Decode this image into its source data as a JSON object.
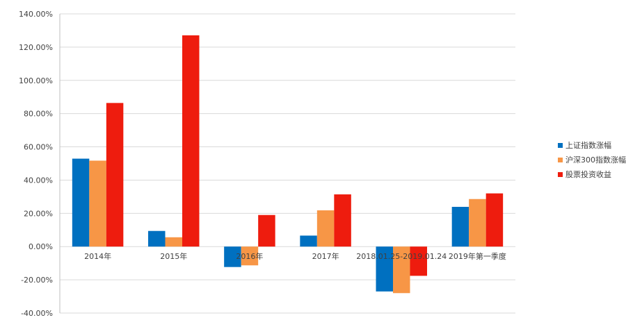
{
  "chart_data": {
    "type": "bar",
    "title": "",
    "xlabel": "",
    "ylabel": "",
    "ylim": [
      -40,
      140
    ],
    "y_ticks": [
      "140.00%",
      "120.00%",
      "100.00%",
      "80.00%",
      "60.00%",
      "40.00%",
      "20.00%",
      "0.00%",
      "-20.00%",
      "-40.00%"
    ],
    "y_tick_values": [
      140,
      120,
      100,
      80,
      60,
      40,
      20,
      0,
      -20,
      -40
    ],
    "grid": true,
    "legend_position": "right",
    "categories": [
      "2014年",
      "2015年",
      "2016年",
      "2017年",
      "2018.01.25-2019.01.24",
      "2019年第一季度"
    ],
    "series": [
      {
        "name": "上证指数涨幅",
        "color": "#0070C0",
        "values": [
          52.9,
          9.4,
          -12.3,
          6.6,
          -27.0,
          23.9
        ]
      },
      {
        "name": "沪深300指数涨幅",
        "color": "#F79646",
        "values": [
          51.7,
          5.6,
          -11.3,
          21.8,
          -28.0,
          28.6
        ]
      },
      {
        "name": "股票投资收益",
        "color": "#EE1C0E",
        "values": [
          86.4,
          127.1,
          19.0,
          31.4,
          -17.6,
          32.0
        ]
      }
    ]
  }
}
